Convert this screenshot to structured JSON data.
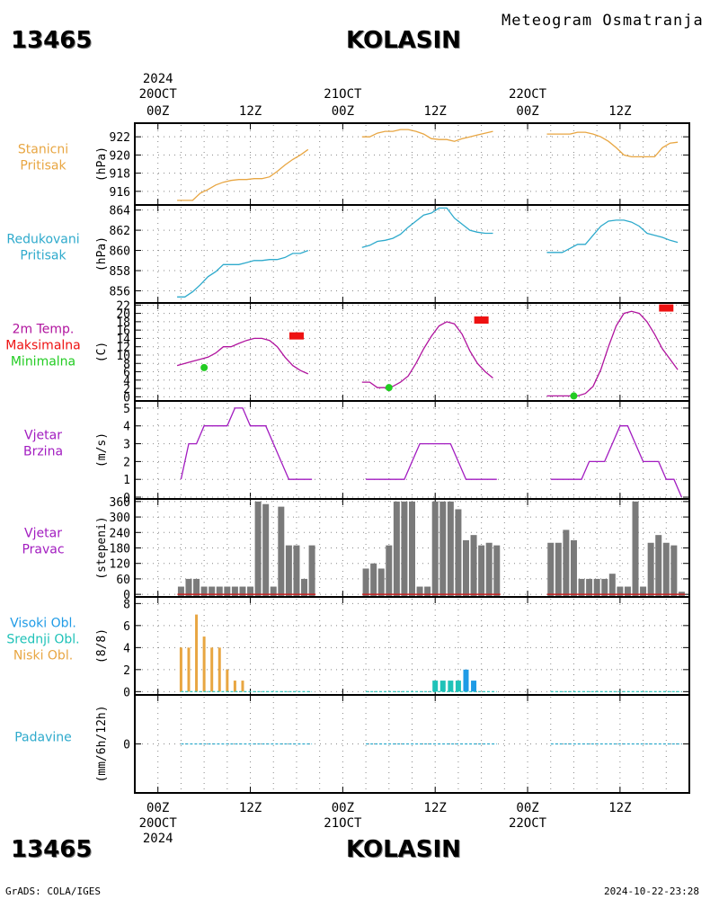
{
  "header": {
    "station_id": "13465",
    "station_name": "KOLASIN",
    "meteogram_title": "Meteogram Osmatranja"
  },
  "footer": {
    "station_id": "13465",
    "station_name": "KOLASIN",
    "credit": "GrADS: COLA/IGES",
    "timestamp": "2024-10-22-23:28"
  },
  "colors": {
    "station_pressure": "#e8a642",
    "reduced_pressure": "#2eaacc",
    "temp_line": "#b0139e",
    "temp_max": "#ee1111",
    "temp_min": "#22cc22",
    "wind": "#a21cc0",
    "wind_dir_bars": "#7a7a7a",
    "wind_dir_baseline": "#cc2222",
    "low_clouds": "#e8a642",
    "mid_clouds": "#1fc2b8",
    "high_clouds": "#1f9be6",
    "precip": "#2eaacc"
  },
  "chart_data": {
    "type": "line",
    "title": "Meteogram Osmatranja",
    "x_axis": {
      "top_year": "2024",
      "bottom_year": "2024",
      "tick_labels": [
        "00Z",
        "12Z",
        "00Z",
        "12Z",
        "00Z",
        "12Z"
      ],
      "date_labels": [
        "20OCT",
        "21OCT",
        "22OCT"
      ],
      "range_hours": [
        -3,
        69
      ]
    },
    "panels": [
      {
        "id": "station_pressure",
        "label_lines": [
          "Stanicni",
          "Pritisak"
        ],
        "ylabel": "(hPa)",
        "yticks": [
          916,
          918,
          920,
          922
        ],
        "ylim": [
          914.5,
          923.5
        ],
        "series": [
          {
            "x": [
              2.5,
              3.5,
              4.5,
              5.5,
              6.5,
              7.5,
              8.5,
              9.5,
              10.5,
              11.5,
              12.5,
              13.5,
              14.5,
              15.5,
              16.5,
              17.5,
              18.5,
              19.5
            ],
            "y": [
              915,
              915,
              915,
              915.8,
              916.2,
              916.7,
              917.0,
              917.2,
              917.3,
              917.3,
              917.4,
              917.4,
              917.6,
              918.2,
              918.9,
              919.5,
              920.0,
              920.6
            ]
          },
          {
            "x": [
              26.5,
              27.5,
              28.5,
              29.5,
              30.5,
              31.5,
              32.5,
              33.5,
              34.5,
              35.5,
              36.5,
              37.5,
              38.5,
              39.5,
              40.5,
              41.5,
              42.5,
              43.5
            ],
            "y": [
              922.0,
              922.0,
              922.4,
              922.6,
              922.6,
              922.8,
              922.8,
              922.6,
              922.3,
              921.8,
              921.7,
              921.7,
              921.5,
              921.8,
              922.0,
              922.2,
              922.4,
              922.6
            ]
          },
          {
            "x": [
              50.5,
              51.5,
              52.5,
              53.5,
              54.5,
              55.5,
              56.5,
              57.5,
              58.5,
              59.5,
              60.5,
              61.5,
              62.5,
              63.5,
              64.5,
              65.5,
              66.5,
              67.5
            ],
            "y": [
              922.3,
              922.3,
              922.3,
              922.3,
              922.5,
              922.5,
              922.3,
              922.0,
              921.5,
              920.8,
              920.0,
              919.8,
              919.8,
              919.8,
              919.8,
              920.8,
              921.3,
              921.4
            ]
          }
        ]
      },
      {
        "id": "reduced_pressure",
        "label_lines": [
          "Redukovani",
          "Pritisak"
        ],
        "ylabel": "(hPa)",
        "yticks": [
          856,
          858,
          860,
          862,
          864
        ],
        "ylim": [
          854.8,
          864.5
        ],
        "series": [
          {
            "x": [
              2.5,
              3.5,
              4.5,
              5.5,
              6.5,
              7.5,
              8.5,
              9.5,
              10.5,
              11.5,
              12.5,
              13.5,
              14.5,
              15.5,
              16.5,
              17.5,
              18.5,
              19.5
            ],
            "y": [
              855.4,
              855.4,
              855.9,
              856.6,
              857.4,
              857.9,
              858.6,
              858.6,
              858.6,
              858.8,
              859.0,
              859.0,
              859.1,
              859.1,
              859.3,
              859.7,
              859.7,
              860.0
            ]
          },
          {
            "x": [
              26.5,
              27.5,
              28.5,
              29.5,
              30.5,
              31.5,
              32.5,
              33.5,
              34.5,
              35.5,
              36.5,
              37.5,
              38.5,
              39.5,
              40.5,
              41.5,
              42.5,
              43.5
            ],
            "y": [
              860.3,
              860.5,
              860.9,
              861.0,
              861.2,
              861.6,
              862.3,
              862.9,
              863.5,
              863.7,
              864.2,
              864.2,
              863.2,
              862.6,
              862.0,
              861.8,
              861.7,
              861.7
            ]
          },
          {
            "x": [
              50.5,
              51.5,
              52.5,
              53.5,
              54.5,
              55.5,
              56.5,
              57.5,
              58.5,
              59.5,
              60.5,
              61.5,
              62.5,
              63.5,
              64.5,
              65.5,
              66.5,
              67.5
            ],
            "y": [
              859.8,
              859.8,
              859.8,
              860.2,
              860.6,
              860.6,
              861.5,
              862.4,
              862.9,
              863.0,
              863.0,
              862.8,
              862.4,
              861.7,
              861.5,
              861.3,
              861.0,
              860.8
            ]
          }
        ]
      },
      {
        "id": "temperature",
        "label_lines": [
          "2m Temp.",
          "Maksimalna",
          "Minimalna"
        ],
        "ylabel": "(C)",
        "yticks": [
          0,
          2,
          4,
          6,
          8,
          10,
          12,
          14,
          16,
          18,
          20,
          22
        ],
        "ylim": [
          -1,
          22.5
        ],
        "series": [
          {
            "x": [
              2.5,
              3.5,
              4.5,
              5.5,
              6.5,
              7.5,
              8.5,
              9.5,
              10.5,
              11.5,
              12.5,
              13.5,
              14.5,
              15.5,
              16.5,
              17.5,
              18.5,
              19.5
            ],
            "y": [
              7.5,
              8.0,
              8.5,
              9.0,
              9.5,
              10.5,
              12.0,
              12.0,
              12.8,
              13.5,
              14.0,
              14.0,
              13.5,
              12.0,
              9.5,
              7.5,
              6.3,
              5.5
            ]
          },
          {
            "x": [
              26.5,
              27.5,
              28.5,
              29.5,
              30.5,
              31.5,
              32.5,
              33.5,
              34.5,
              35.5,
              36.5,
              37.5,
              38.5,
              39.5,
              40.5,
              41.5,
              42.5,
              43.5
            ],
            "y": [
              3.5,
              3.5,
              2.2,
              2.2,
              2.5,
              3.5,
              5.0,
              8.0,
              11.5,
              14.5,
              17.0,
              18.0,
              17.5,
              15.0,
              11.0,
              8.0,
              6.0,
              4.5
            ]
          },
          {
            "x": [
              50.5,
              51.5,
              52.5,
              53.5,
              54.5,
              55.5,
              56.5,
              57.5,
              58.5,
              59.5,
              60.5,
              61.5,
              62.5,
              63.5,
              64.5,
              65.5,
              66.5,
              67.5
            ],
            "y": [
              0.2,
              0.2,
              0.2,
              0.2,
              0.2,
              0.8,
              2.5,
              6.5,
              12.0,
              17.0,
              20.0,
              20.5,
              20.0,
              18.0,
              15.0,
              11.5,
              9.0,
              6.5
            ]
          }
        ],
        "max_points": [
          {
            "x": 18.0,
            "y": 14.6
          },
          {
            "x": 42.0,
            "y": 18.4
          },
          {
            "x": 66.0,
            "y": 21.3
          }
        ],
        "min_points": [
          {
            "x": 6.0,
            "y": 7.0
          },
          {
            "x": 30.0,
            "y": 2.2
          },
          {
            "x": 54.0,
            "y": 0.2
          }
        ]
      },
      {
        "id": "wind_speed",
        "label_lines": [
          "Vjetar",
          "Brzina"
        ],
        "ylabel": "(m/s)",
        "yticks": [
          0,
          1,
          2,
          3,
          4,
          5
        ],
        "ylim": [
          -0.1,
          5.4
        ],
        "series": [
          {
            "x": [
              3,
              4,
              5,
              6,
              7,
              8,
              9,
              10,
              11,
              12,
              13,
              14,
              15,
              16,
              17,
              18,
              19,
              20
            ],
            "y": [
              1,
              3,
              3,
              4,
              4,
              4,
              4,
              5,
              5,
              4,
              4,
              4,
              3,
              2,
              1,
              1,
              1,
              1
            ]
          },
          {
            "x": [
              27,
              28,
              29,
              30,
              31,
              32,
              33,
              34,
              35,
              36,
              37,
              38,
              39,
              40,
              41,
              42,
              43,
              44
            ],
            "y": [
              1,
              1,
              1,
              1,
              1,
              1,
              2,
              3,
              3,
              3,
              3,
              3,
              2,
              1,
              1,
              1,
              1,
              1
            ]
          },
          {
            "x": [
              51,
              52,
              53,
              54,
              55,
              56,
              57,
              58,
              59,
              60,
              61,
              62,
              63,
              64,
              65,
              66,
              67,
              68
            ],
            "y": [
              1,
              1,
              1,
              1,
              1,
              2,
              2,
              2,
              3,
              4,
              4,
              3,
              2,
              2,
              2,
              1,
              1,
              0
            ]
          }
        ]
      },
      {
        "id": "wind_direction",
        "label_lines": [
          "Vjetar",
          "Pravac"
        ],
        "ylabel": "(stepeni)",
        "yticks": [
          0,
          60,
          120,
          180,
          240,
          300,
          360
        ],
        "ylim": [
          -10,
          370
        ],
        "bars": [
          {
            "x": [
              3,
              4,
              5,
              6,
              7,
              8,
              9,
              10,
              11,
              12,
              13,
              14,
              15,
              16,
              17,
              18,
              19,
              20
            ],
            "y": [
              30,
              60,
              60,
              30,
              30,
              30,
              30,
              30,
              30,
              30,
              360,
              350,
              30,
              340,
              190,
              190,
              60,
              190
            ]
          },
          {
            "x": [
              27,
              28,
              29,
              30,
              31,
              32,
              33,
              34,
              35,
              36,
              37,
              38,
              39,
              40,
              41,
              42,
              43,
              44
            ],
            "y": [
              100,
              120,
              100,
              190,
              360,
              360,
              360,
              30,
              30,
              360,
              360,
              360,
              330,
              210,
              230,
              190,
              200,
              190
            ]
          },
          {
            "x": [
              51,
              52,
              53,
              54,
              55,
              56,
              57,
              58,
              59,
              60,
              61,
              62,
              63,
              64,
              65,
              66,
              67,
              68
            ],
            "y": [
              200,
              200,
              250,
              210,
              60,
              60,
              60,
              60,
              80,
              30,
              30,
              360,
              30,
              200,
              230,
              200,
              190,
              10
            ]
          }
        ]
      },
      {
        "id": "clouds",
        "label_lines": [
          "Visoki Obl.",
          "Srednji Obl.",
          "Niski Obl."
        ],
        "ylabel": "(8/8)",
        "yticks": [
          0,
          2,
          4,
          6,
          8
        ],
        "ylim": [
          -0.3,
          8.6
        ],
        "low": {
          "x": [
            3,
            4,
            5,
            6,
            7,
            8,
            9,
            10,
            11
          ],
          "y": [
            4,
            4,
            7,
            5,
            4,
            4,
            2,
            1,
            1
          ]
        },
        "mid": {
          "x": [
            36,
            37,
            38,
            39,
            40
          ],
          "y": [
            1,
            1,
            1,
            1,
            1
          ]
        },
        "high": {
          "x": [
            40,
            41
          ],
          "y": [
            2,
            1
          ]
        }
      },
      {
        "id": "precipitation",
        "label_lines": [
          "Padavine"
        ],
        "ylabel": "(mm/6h/12h)",
        "yticks": [
          0
        ],
        "ylim": [
          -0.5,
          0.5
        ],
        "series": [
          {
            "x": [
              3,
              20
            ],
            "y": [
              0,
              0
            ]
          },
          {
            "x": [
              27,
              44
            ],
            "y": [
              0,
              0
            ]
          },
          {
            "x": [
              51,
              68
            ],
            "y": [
              0,
              0
            ]
          }
        ]
      }
    ]
  }
}
